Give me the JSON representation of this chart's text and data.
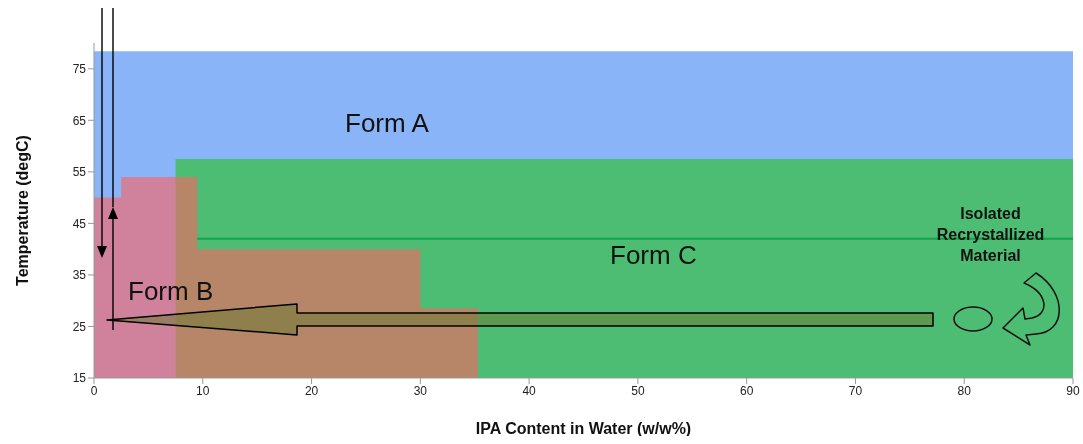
{
  "chart_data": {
    "type": "area",
    "xlabel": "IPA Content in Water (w/w%)",
    "ylabel": "Temperature (degC)",
    "xlim": [
      0,
      90
    ],
    "xticks": [
      0,
      10,
      20,
      30,
      40,
      50,
      60,
      70,
      80,
      90
    ],
    "ylim": [
      15,
      80
    ],
    "yticks": [
      15,
      25,
      35,
      45,
      55,
      65,
      75
    ],
    "series": [
      {
        "name": "Form A",
        "color": "#8ab4f8",
        "x": [
          0,
          90
        ],
        "values": [
          78.4,
          78.4
        ]
      },
      {
        "name": "Form C",
        "color": "#4dbd74",
        "x": [
          7.5,
          90
        ],
        "values": [
          57.5,
          57.5
        ]
      },
      {
        "name": "Form B",
        "color": "#ff6060",
        "x": [
          0,
          2.5,
          9.5,
          30,
          35.3
        ],
        "values": [
          50,
          54,
          40,
          28.5,
          28.5
        ]
      },
      {
        "type": "line",
        "color": "#12a24a",
        "x": [
          9.5,
          90
        ],
        "values": [
          42,
          42
        ]
      }
    ],
    "annotations": [
      "Isolated Recrystallized Material"
    ]
  }
}
